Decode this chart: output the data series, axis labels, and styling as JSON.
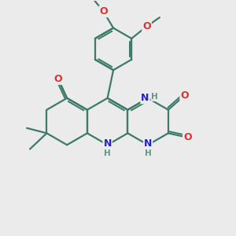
{
  "bg_color": "#ebebeb",
  "bond_color": "#3d7a6b",
  "bond_width": 1.6,
  "atom_colors": {
    "O": "#e03030",
    "N": "#2222cc",
    "H": "#5a9a8a"
  },
  "font_size": 9.0,
  "font_size_h": 7.5
}
